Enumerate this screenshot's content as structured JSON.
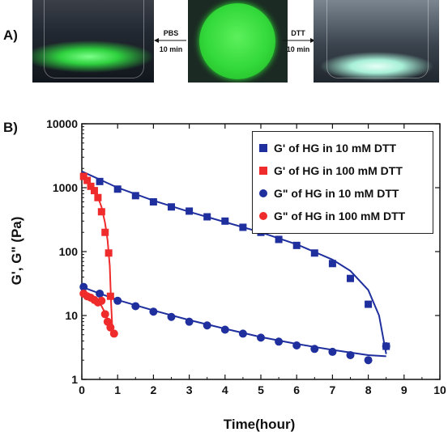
{
  "panels": {
    "a_label": "A)",
    "b_label": "B)"
  },
  "photos": {
    "left_arrow_top": "PBS",
    "left_arrow_bottom": "10 min",
    "right_arrow_top": "DTT",
    "right_arrow_bottom": "10 min"
  },
  "colors": {
    "blue": "#1f2f9e",
    "red": "#ef2b2b",
    "green_glow": "#33d93a"
  },
  "chart_data": {
    "type": "scatter",
    "xlabel": "Time(hour)",
    "ylabel": "G', G\" (Pa)",
    "xlim": [
      0,
      10
    ],
    "ylim": [
      1,
      10000
    ],
    "yscale": "log",
    "xticks": [
      "0",
      "1",
      "2",
      "3",
      "4",
      "5",
      "6",
      "7",
      "8",
      "9",
      "10"
    ],
    "yticks": [
      "1",
      "10",
      "100",
      "1000",
      "10000"
    ],
    "legend_position": "top-right",
    "series": [
      {
        "name": "G' of HG in 10 mM DTT",
        "marker": "square",
        "color": "#1f2f9e",
        "x": [
          0.5,
          1,
          1.5,
          2,
          2.5,
          3,
          3.5,
          4,
          4.5,
          5,
          5.5,
          6,
          6.5,
          7,
          7.5,
          8,
          8.5
        ],
        "y": [
          1250,
          950,
          750,
          600,
          500,
          430,
          350,
          300,
          240,
          200,
          155,
          125,
          95,
          65,
          38,
          15,
          3.3
        ],
        "fit_x": [
          0,
          1,
          2,
          3,
          4,
          5,
          6,
          7,
          7.5,
          8,
          8.3,
          8.5
        ],
        "fit_y": [
          1800,
          1000,
          630,
          420,
          290,
          200,
          130,
          75,
          50,
          25,
          10,
          2.5
        ]
      },
      {
        "name": "G' of HG in 100 mM DTT",
        "marker": "square",
        "color": "#ef2b2b",
        "x": [
          0.05,
          0.15,
          0.25,
          0.35,
          0.45,
          0.55,
          0.65,
          0.75,
          0.8
        ],
        "y": [
          1500,
          1300,
          1050,
          900,
          700,
          420,
          200,
          95,
          20
        ],
        "fit_x": [
          0,
          0.2,
          0.4,
          0.55,
          0.65,
          0.72,
          0.78,
          0.82,
          0.86
        ],
        "fit_y": [
          1600,
          1250,
          850,
          500,
          280,
          150,
          60,
          15,
          5
        ]
      },
      {
        "name": "G\" of HG in 10 mM DTT",
        "marker": "circle",
        "color": "#1f2f9e",
        "x": [
          0.05,
          0.5,
          1,
          1.5,
          2,
          2.5,
          3,
          3.5,
          4,
          4.5,
          5,
          5.5,
          6,
          6.5,
          7,
          7.5,
          8,
          8.5
        ],
        "y": [
          28,
          22,
          17,
          14,
          11.5,
          9.5,
          8,
          7,
          6,
          5.2,
          4.5,
          3.9,
          3.4,
          3,
          2.7,
          2.4,
          2,
          3.3
        ],
        "fit_x": [
          0,
          1,
          2,
          3,
          4,
          5,
          6,
          7,
          8,
          8.5
        ],
        "fit_y": [
          28,
          17.5,
          12,
          8.5,
          6.2,
          4.6,
          3.6,
          2.9,
          2.4,
          2.3
        ]
      },
      {
        "name": "G\" of HG in 100 mM DTT",
        "marker": "circle",
        "color": "#ef2b2b",
        "x": [
          0.05,
          0.15,
          0.25,
          0.35,
          0.45,
          0.55,
          0.65,
          0.72,
          0.8,
          0.9
        ],
        "y": [
          22,
          20,
          19,
          17.5,
          16,
          17,
          10.5,
          8,
          6.5,
          5.2
        ],
        "fit_x": [
          0,
          0.3,
          0.5,
          0.65,
          0.75,
          0.85,
          0.9
        ],
        "fit_y": [
          22,
          19,
          16,
          11,
          8,
          6,
          5
        ]
      }
    ]
  }
}
